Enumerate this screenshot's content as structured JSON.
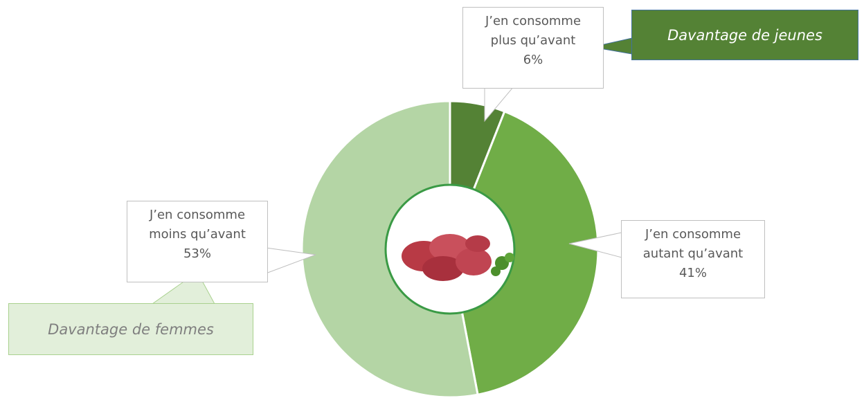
{
  "chart_data": {
    "type": "pie",
    "categories": [
      "J’en consomme plus qu’avant",
      "J’en consomme autant qu’avant",
      "J’en consomme moins qu’avant"
    ],
    "values": [
      6,
      41,
      53
    ],
    "value_labels": [
      "6%",
      "41%",
      "53%"
    ],
    "colors": [
      "#548235",
      "#70ad47",
      "#b4d5a5"
    ],
    "annotations": [
      "Davantage de jeunes",
      "Davantage de femmes"
    ]
  }
}
